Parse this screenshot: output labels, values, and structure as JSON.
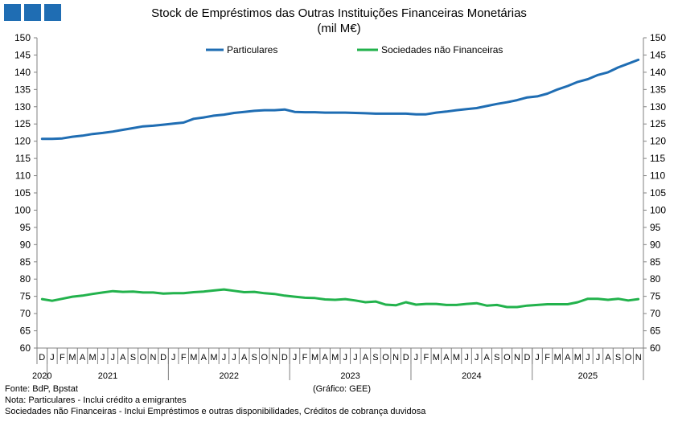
{
  "title": "Stock de Empréstimos das Outras Instituições Financeiras Monetárias",
  "subtitle": "(mil M€)",
  "credit": "(Gráfico: GEE)",
  "footnotes": {
    "source": "Fonte: BdP, Bpstat",
    "note1": "Nota: Particulares - Inclui crédito a emigrantes",
    "note2": "Sociedades não Financeiras - Inclui Empréstimos e outras disponibilidades, Créditos de cobrança duvidosa"
  },
  "colors": {
    "brand": "#1f6db3",
    "particulares": "#1f6db3",
    "snf": "#22b24c",
    "axis": "#808080"
  },
  "chart_data": {
    "type": "line",
    "title": "Stock de Empréstimos das Outras Instituições Financeiras Monetárias",
    "ylabel": "mil M€",
    "ylim": [
      60,
      150
    ],
    "ytick_step": 5,
    "legend_position": "top",
    "month_labels": [
      "D",
      "J",
      "F",
      "M",
      "A",
      "M",
      "J",
      "J",
      "A",
      "S",
      "O",
      "N",
      "D",
      "J",
      "F",
      "M",
      "A",
      "M",
      "J",
      "J",
      "A",
      "S",
      "O",
      "N",
      "D",
      "J",
      "F",
      "M",
      "A",
      "M",
      "J",
      "J",
      "A",
      "S",
      "O",
      "N",
      "D",
      "J",
      "F",
      "M",
      "A",
      "M",
      "J",
      "J",
      "A",
      "S",
      "O",
      "N",
      "D",
      "J",
      "F",
      "M",
      "A",
      "M",
      "J",
      "J",
      "A",
      "S",
      "O",
      "N"
    ],
    "years": [
      {
        "label": "2020",
        "start": 0,
        "end": 0
      },
      {
        "label": "2021",
        "start": 1,
        "end": 12
      },
      {
        "label": "2022",
        "start": 13,
        "end": 24
      },
      {
        "label": "2023",
        "start": 25,
        "end": 36
      },
      {
        "label": "2024",
        "start": 37,
        "end": 48
      },
      {
        "label": "2025",
        "start": 49,
        "end": 59
      }
    ],
    "series": [
      {
        "name": "Particulares",
        "values": [
          120.7,
          120.7,
          120.8,
          121.3,
          121.6,
          122.1,
          122.4,
          122.8,
          123.3,
          123.8,
          124.3,
          124.5,
          124.8,
          125.1,
          125.4,
          126.5,
          126.9,
          127.4,
          127.7,
          128.2,
          128.5,
          128.8,
          129.0,
          129.0,
          129.2,
          128.5,
          128.4,
          128.4,
          128.3,
          128.3,
          128.3,
          128.2,
          128.1,
          128.0,
          128.0,
          128.0,
          128.0,
          127.8,
          127.8,
          128.3,
          128.6,
          129.0,
          129.3,
          129.6,
          130.2,
          130.8,
          131.3,
          131.9,
          132.7,
          133.0,
          133.8,
          135.0,
          136.0,
          137.2,
          138.0,
          139.2,
          140.0,
          141.4,
          142.5,
          143.6
        ]
      },
      {
        "name": "Sociedades não Financeiras",
        "values": [
          74.2,
          73.7,
          74.3,
          74.9,
          75.2,
          75.7,
          76.1,
          76.5,
          76.3,
          76.4,
          76.1,
          76.1,
          75.8,
          75.9,
          75.9,
          76.2,
          76.4,
          76.7,
          77.0,
          76.6,
          76.2,
          76.3,
          75.9,
          75.7,
          75.2,
          74.9,
          74.6,
          74.5,
          74.1,
          74.0,
          74.2,
          73.8,
          73.3,
          73.5,
          72.6,
          72.4,
          73.3,
          72.6,
          72.8,
          72.8,
          72.5,
          72.5,
          72.8,
          73.0,
          72.3,
          72.5,
          71.9,
          71.9,
          72.3,
          72.5,
          72.7,
          72.7,
          72.7,
          73.3,
          74.3,
          74.3,
          74.0,
          74.3,
          73.8,
          74.2
        ]
      }
    ]
  }
}
